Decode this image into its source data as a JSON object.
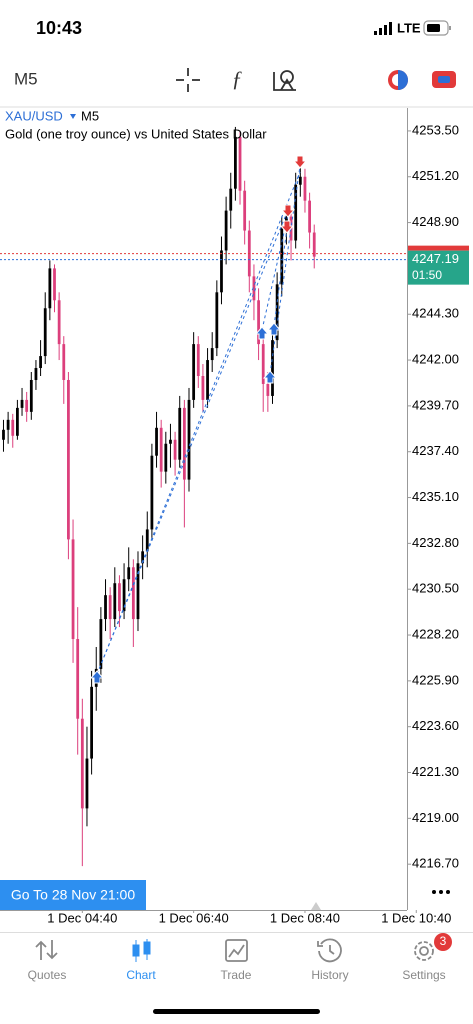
{
  "status_bar": {
    "time": "10:43",
    "network": "LTE"
  },
  "toolbar": {
    "timeframe": "M5"
  },
  "chart_data": {
    "type": "candlestick",
    "symbol": "XAU/USD",
    "timeframe": "M5",
    "description": "Gold (one troy ounce) vs United States Dollar",
    "up_color": "#000000",
    "down_color": "#dc3f7c",
    "ohlc": [
      [
        4238.0,
        4239.0,
        4237.4,
        4238.5
      ],
      [
        4238.5,
        4239.4,
        4237.8,
        4239.0
      ],
      [
        4239.0,
        4239.3,
        4237.6,
        4238.2
      ],
      [
        4238.2,
        4240.0,
        4238.0,
        4239.6
      ],
      [
        4239.6,
        4240.6,
        4239.2,
        4240.0
      ],
      [
        4240.0,
        4240.4,
        4238.9,
        4239.4
      ],
      [
        4239.4,
        4241.4,
        4239.0,
        4241.0
      ],
      [
        4241.0,
        4242.0,
        4240.5,
        4241.6
      ],
      [
        4241.6,
        4243.0,
        4241.2,
        4242.2
      ],
      [
        4242.2,
        4245.4,
        4241.8,
        4244.6
      ],
      [
        4244.6,
        4247.0,
        4244.0,
        4246.6
      ],
      [
        4246.6,
        4246.8,
        4244.4,
        4245.0
      ],
      [
        4245.0,
        4245.4,
        4242.0,
        4242.8
      ],
      [
        4242.8,
        4243.2,
        4239.8,
        4241.0
      ],
      [
        4241.0,
        4241.4,
        4232.0,
        4233.0
      ],
      [
        4233.0,
        4234.0,
        4226.8,
        4228.0
      ],
      [
        4228.0,
        4229.6,
        4222.2,
        4224.0
      ],
      [
        4224.0,
        4225.0,
        4216.6,
        4219.5
      ],
      [
        4219.5,
        4223.6,
        4218.6,
        4222.0
      ],
      [
        4222.0,
        4226.4,
        4221.2,
        4225.6
      ],
      [
        4225.6,
        4227.6,
        4224.4,
        4226.5
      ],
      [
        4226.5,
        4229.6,
        4225.8,
        4229.0
      ],
      [
        4229.0,
        4231.0,
        4228.4,
        4230.2
      ],
      [
        4230.2,
        4230.6,
        4228.0,
        4229.0
      ],
      [
        4229.0,
        4231.6,
        4228.6,
        4230.8
      ],
      [
        4230.8,
        4231.2,
        4228.6,
        4229.4
      ],
      [
        4229.4,
        4231.8,
        4229.0,
        4231.0
      ],
      [
        4231.0,
        4232.6,
        4230.4,
        4231.6
      ],
      [
        4231.6,
        4232.0,
        4227.6,
        4229.0
      ],
      [
        4229.0,
        4232.4,
        4228.4,
        4231.8
      ],
      [
        4231.8,
        4233.2,
        4231.0,
        4232.4
      ],
      [
        4232.4,
        4234.4,
        4231.6,
        4233.5
      ],
      [
        4233.5,
        4237.8,
        4233.0,
        4237.2
      ],
      [
        4237.2,
        4239.4,
        4236.6,
        4238.6
      ],
      [
        4238.6,
        4239.0,
        4235.6,
        4236.4
      ],
      [
        4236.4,
        4238.4,
        4235.8,
        4237.8
      ],
      [
        4237.8,
        4238.8,
        4236.6,
        4238.0
      ],
      [
        4238.0,
        4238.4,
        4236.2,
        4237.0
      ],
      [
        4237.0,
        4240.2,
        4236.6,
        4239.6
      ],
      [
        4239.6,
        4240.0,
        4233.6,
        4236.0
      ],
      [
        4236.0,
        4240.6,
        4235.4,
        4240.0
      ],
      [
        4240.0,
        4243.4,
        4239.6,
        4242.8
      ],
      [
        4242.8,
        4243.2,
        4240.6,
        4241.2
      ],
      [
        4241.2,
        4241.8,
        4239.4,
        4240.0
      ],
      [
        4240.0,
        4242.6,
        4239.6,
        4242.0
      ],
      [
        4242.0,
        4243.4,
        4241.4,
        4242.6
      ],
      [
        4242.6,
        4246.0,
        4242.2,
        4245.4
      ],
      [
        4245.4,
        4248.2,
        4244.8,
        4247.5
      ],
      [
        4247.5,
        4250.2,
        4246.8,
        4249.5
      ],
      [
        4249.5,
        4251.4,
        4248.6,
        4250.6
      ],
      [
        4250.6,
        4253.7,
        4250.0,
        4253.2
      ],
      [
        4253.2,
        4253.5,
        4249.8,
        4250.5
      ],
      [
        4250.5,
        4251.0,
        4247.8,
        4248.5
      ],
      [
        4248.5,
        4249.0,
        4245.4,
        4246.2
      ],
      [
        4246.2,
        4246.8,
        4244.0,
        4245.0
      ],
      [
        4245.0,
        4245.6,
        4242.0,
        4242.8
      ],
      [
        4242.8,
        4243.4,
        4239.4,
        4240.8
      ],
      [
        4240.8,
        4241.4,
        4239.4,
        4240.2
      ],
      [
        4240.2,
        4243.6,
        4239.8,
        4243.0
      ],
      [
        4243.0,
        4246.4,
        4242.6,
        4245.8
      ],
      [
        4245.8,
        4249.2,
        4245.2,
        4248.6
      ],
      [
        4248.6,
        4249.8,
        4247.8,
        4249.2
      ],
      [
        4249.2,
        4249.6,
        4247.0,
        4248.0
      ],
      [
        4248.0,
        4251.4,
        4247.6,
        4250.8
      ],
      [
        4250.8,
        4251.8,
        4250.2,
        4251.2
      ],
      [
        4251.2,
        4251.6,
        4249.4,
        4250.0
      ],
      [
        4250.0,
        4250.4,
        4247.6,
        4248.4
      ],
      [
        4248.4,
        4248.8,
        4246.6,
        4247.19
      ]
    ],
    "xlim": [
      -0.75,
      87
    ],
    "xticks": [
      {
        "value": 17,
        "label": "1 Dec 04:40"
      },
      {
        "value": 41,
        "label": "1 Dec 06:40"
      },
      {
        "value": 65,
        "label": "1 Dec 08:40"
      },
      {
        "value": 89,
        "label": "1 Dec 10:40"
      }
    ],
    "ylim": [
      4214.4,
      4254.65
    ],
    "yticks": [
      {
        "value": 4253.5,
        "label": "4253.50"
      },
      {
        "value": 4251.2,
        "label": "4251.20"
      },
      {
        "value": 4248.9,
        "label": "4248.90"
      },
      {
        "value": 4244.3,
        "label": "4244.30"
      },
      {
        "value": 4242,
        "label": "4242.00"
      },
      {
        "value": 4239.7,
        "label": "4239.70"
      },
      {
        "value": 4237.4,
        "label": "4237.40"
      },
      {
        "value": 4235.1,
        "label": "4235.10"
      },
      {
        "value": 4232.8,
        "label": "4232.80"
      },
      {
        "value": 4230.5,
        "label": "4230.50"
      },
      {
        "value": 4228.2,
        "label": "4228.20"
      },
      {
        "value": 4225.9,
        "label": "4225.90"
      },
      {
        "value": 4223.6,
        "label": "4223.60"
      },
      {
        "value": 4221.3,
        "label": "4221.30"
      },
      {
        "value": 4219,
        "label": "4219.00"
      },
      {
        "value": 4216.7,
        "label": "4216.70"
      }
    ],
    "current_price": {
      "value": 4247.19,
      "timer": "01:50"
    }
  },
  "go_to_button": "Go To 28 Nov 21:00",
  "tabs": [
    {
      "label": "Quotes"
    },
    {
      "label": "Chart"
    },
    {
      "label": "Trade"
    },
    {
      "label": "History"
    },
    {
      "label": "Settings",
      "badge": "3"
    }
  ]
}
